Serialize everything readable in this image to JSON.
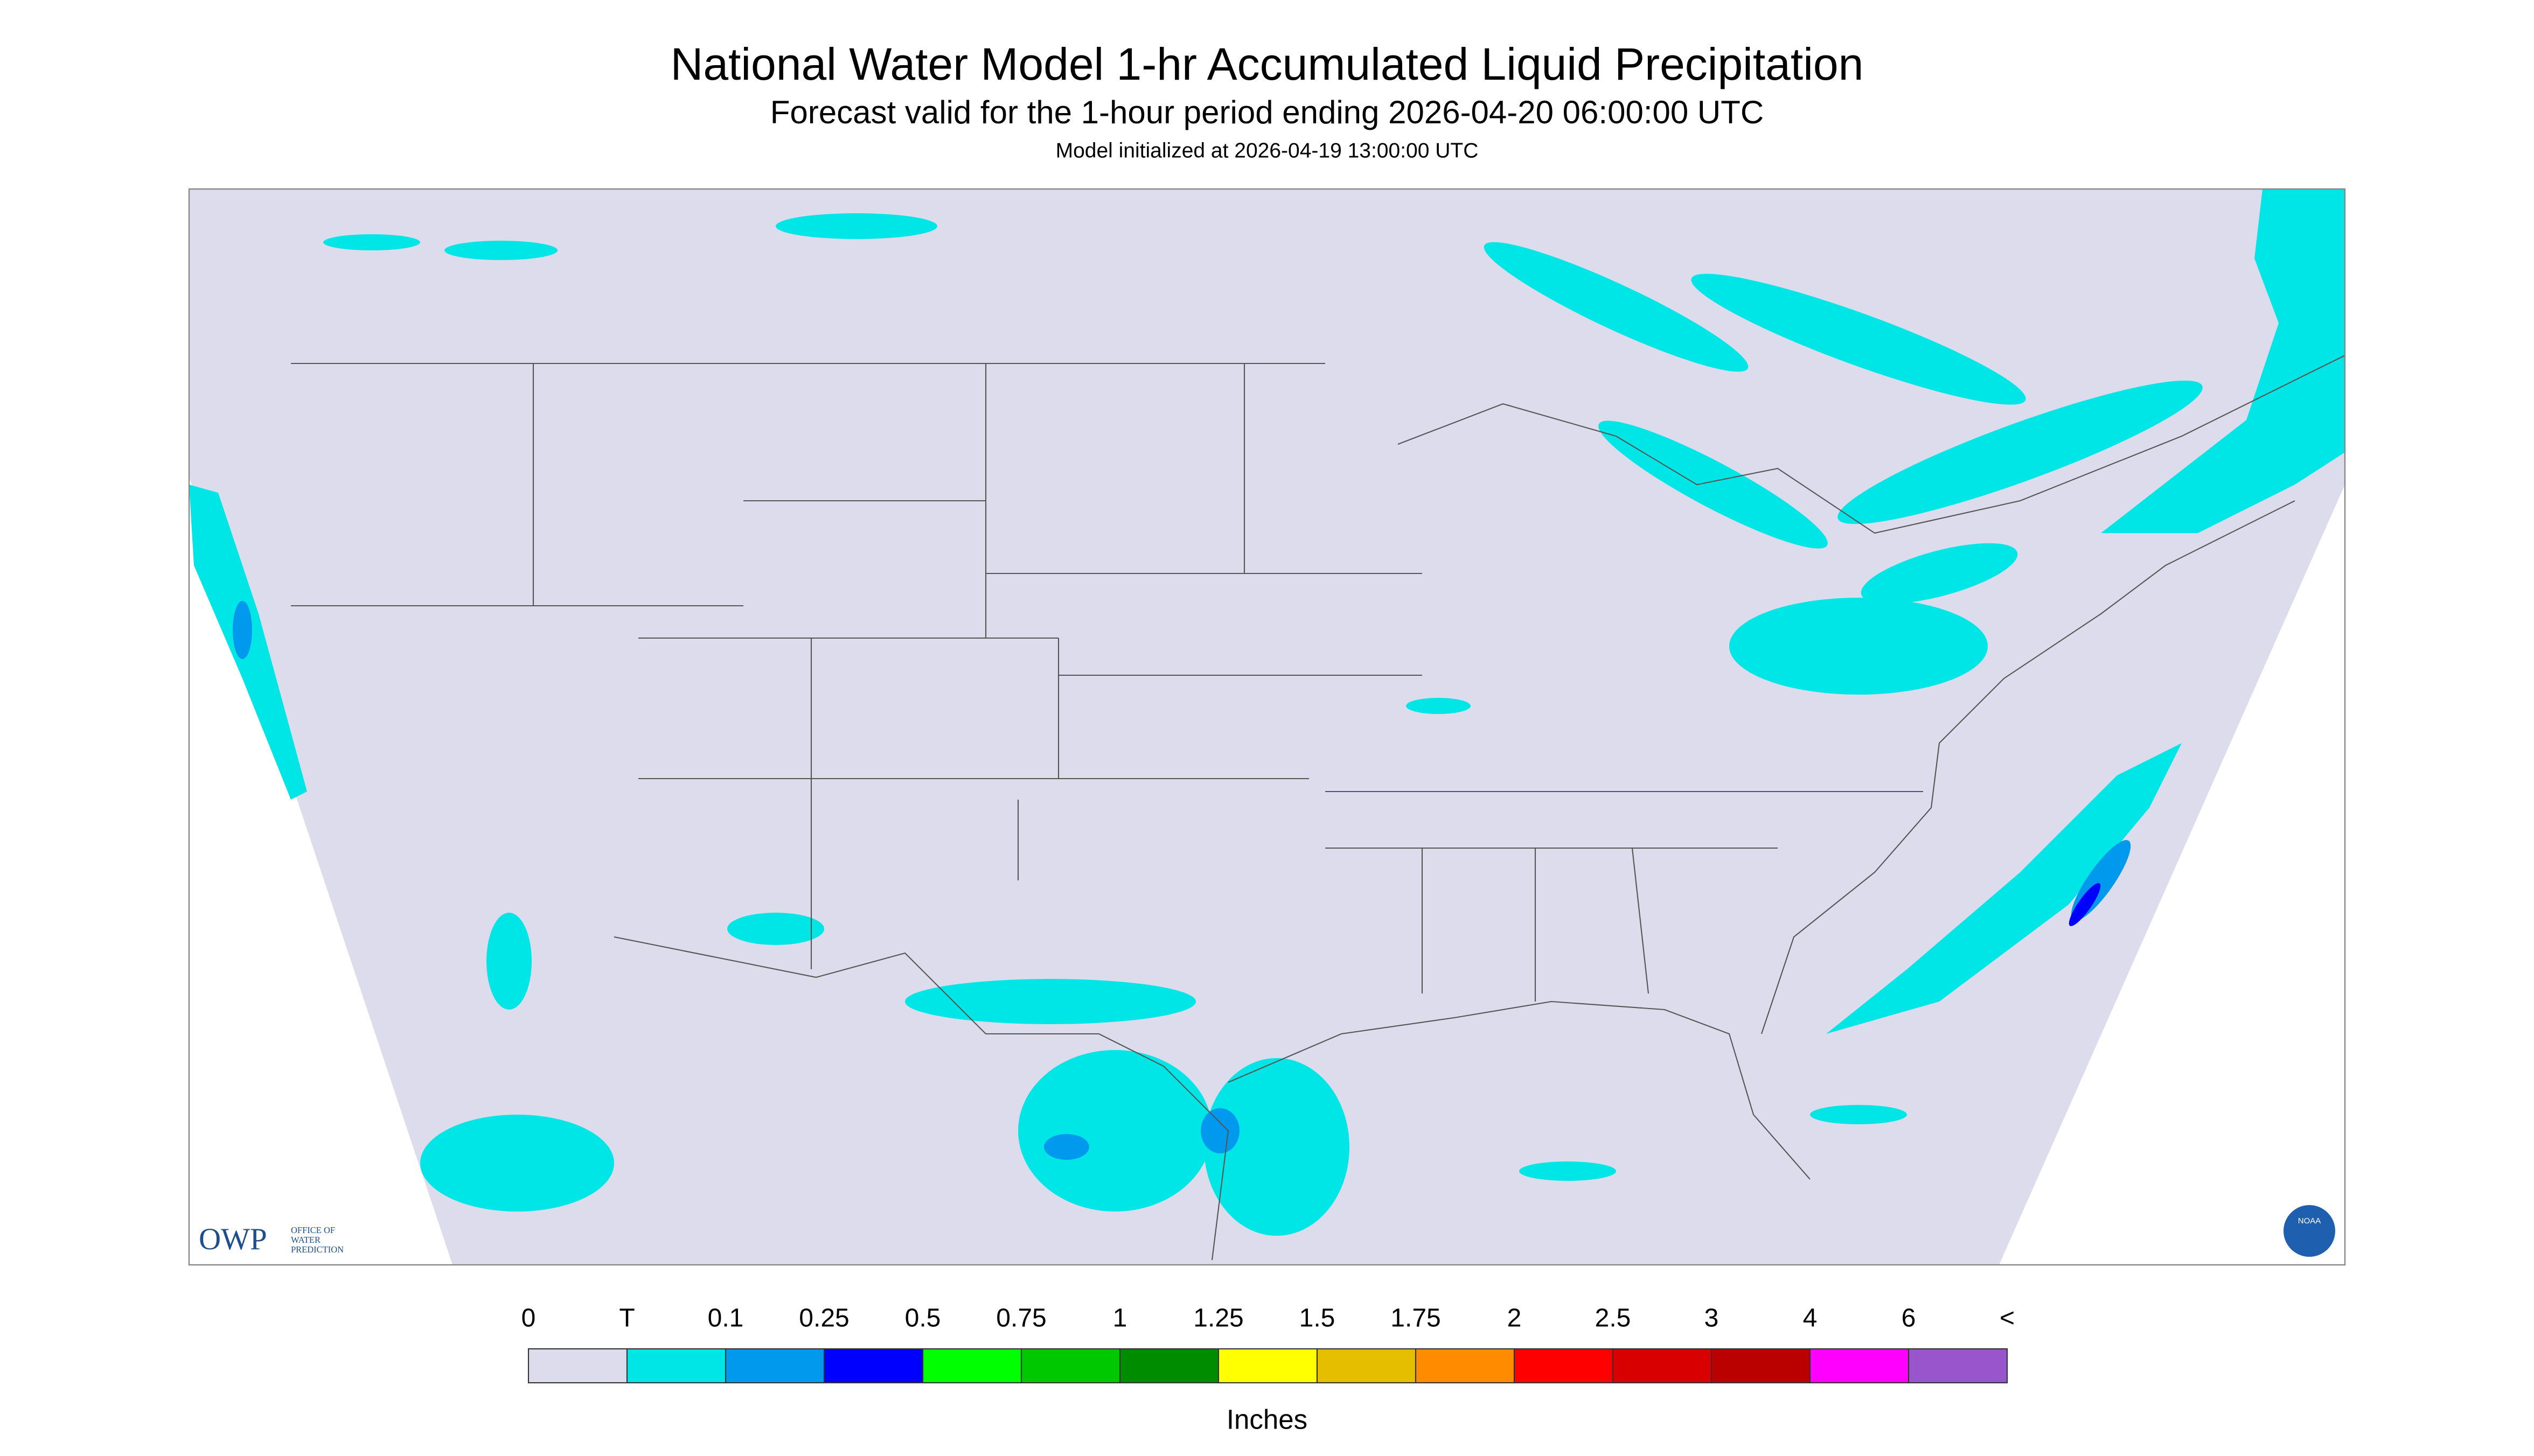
{
  "header": {
    "title": "National Water Model 1-hr Accumulated Liquid Precipitation",
    "subtitle": "Forecast valid for the 1-hour period ending 2026-04-20 06:00:00 UTC",
    "note": "Model initialized at 2026-04-19 13:00:00 UTC"
  },
  "legend": {
    "labels": [
      "0",
      "T",
      "0.1",
      "0.25",
      "0.5",
      "0.75",
      "1",
      "1.25",
      "1.5",
      "1.75",
      "2",
      "2.5",
      "3",
      "4",
      "6",
      "<"
    ],
    "colors": [
      "#dcdcec",
      "#00e6e6",
      "#0099ee",
      "#0000ff",
      "#00ff00",
      "#00c800",
      "#008c00",
      "#ffff00",
      "#e6be00",
      "#ff8c00",
      "#ff0000",
      "#d80000",
      "#bb0000",
      "#ff00ff",
      "#9955cc"
    ],
    "unit": "Inches"
  },
  "logos": {
    "owp": "OWP",
    "owp_name": [
      "OFFICE OF",
      "WATER",
      "PREDICTION"
    ],
    "noaa": "NOAA"
  }
}
